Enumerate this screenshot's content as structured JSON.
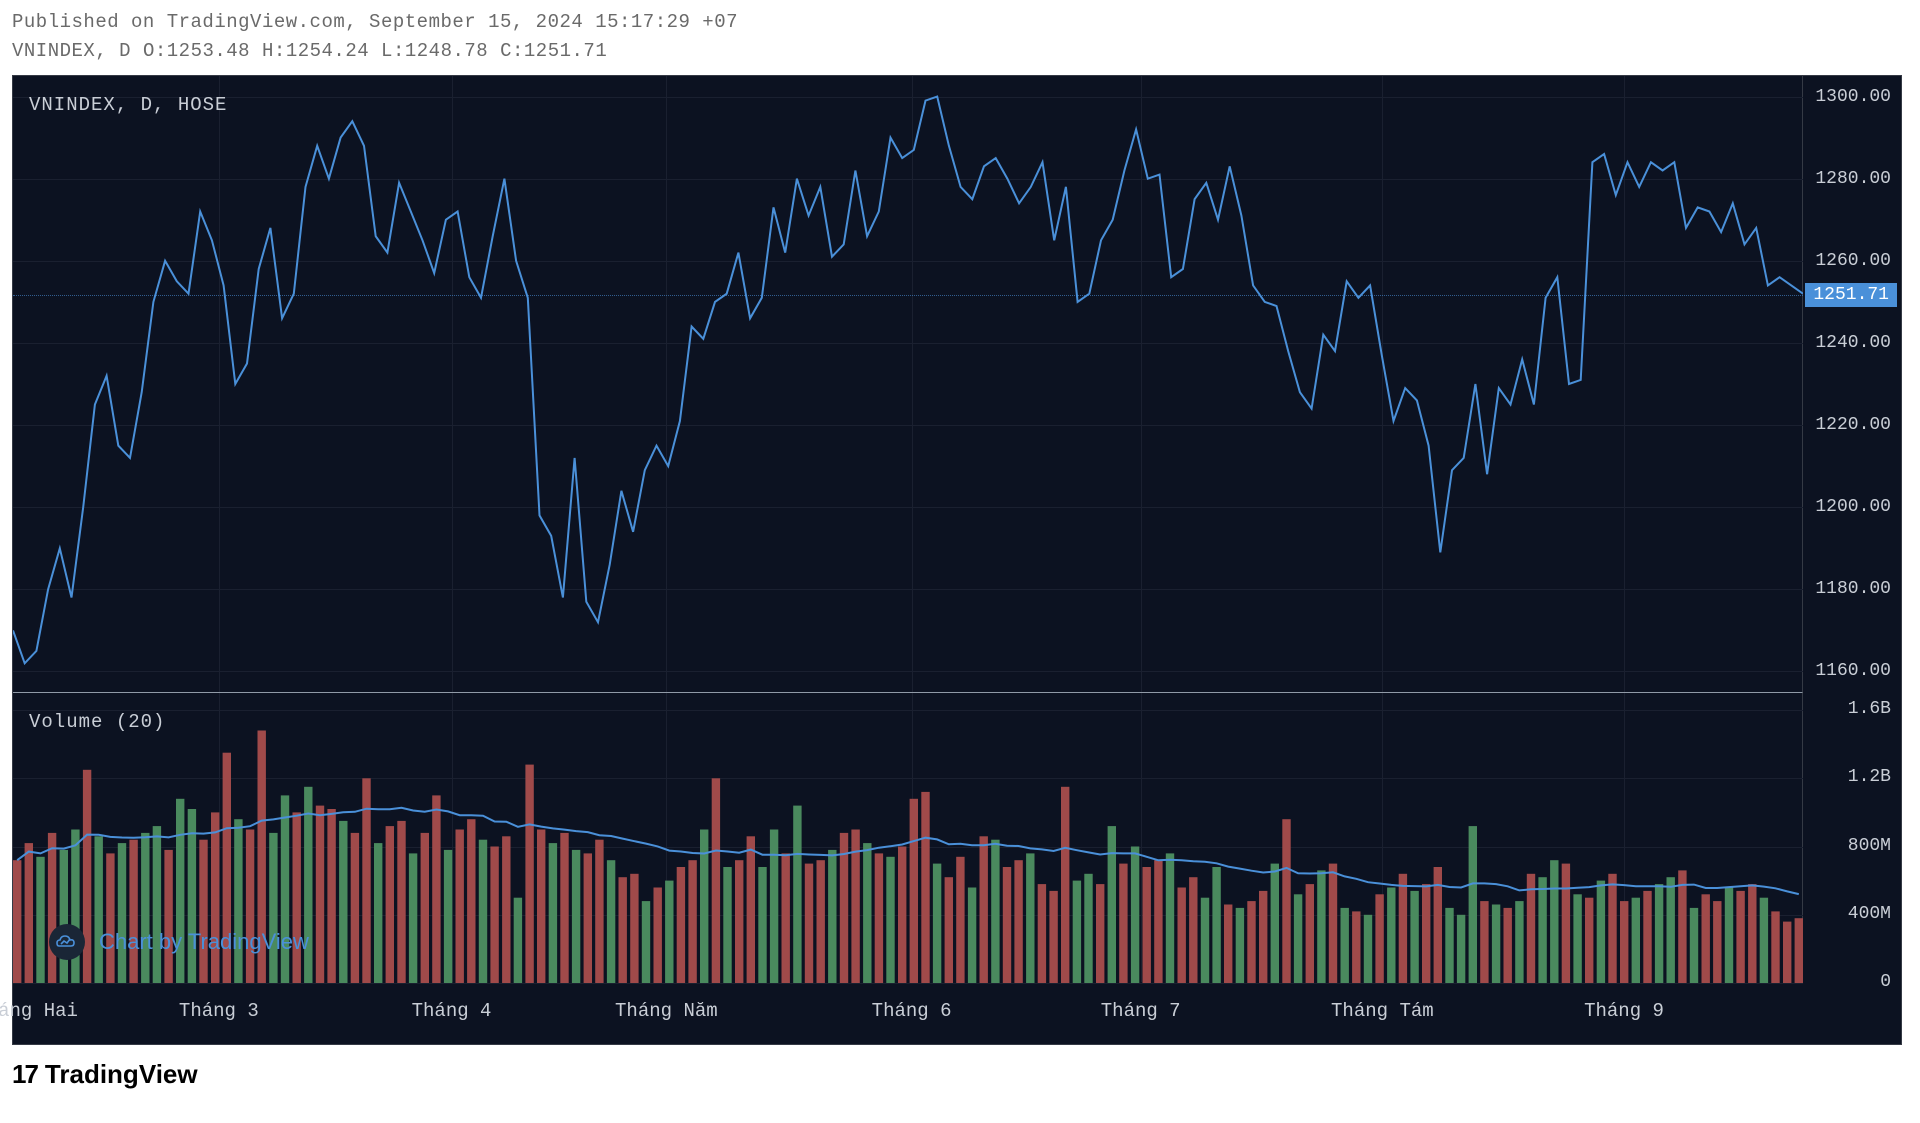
{
  "header": {
    "line1": "Published on TradingView.com, September 15, 2024 15:17:29 +07",
    "line2_symbol": "VNINDEX",
    "line2_tf": "D",
    "ohlc": {
      "O": "1253.48",
      "H": "1254.24",
      "L": "1248.78",
      "C": "1251.71"
    }
  },
  "price_chart": {
    "panel_label": "VNINDEX, D, HOSE",
    "label_color": "#c9ced6",
    "line_color": "#4a90d9",
    "line_width": 2,
    "background": "#0c1221",
    "grid_color": "#1a2030",
    "ylim": [
      1155,
      1305
    ],
    "yticks": [
      1160,
      1180,
      1200,
      1220,
      1240,
      1260,
      1280,
      1300
    ],
    "last_price": 1251.71,
    "last_price_color": "#4a90d9",
    "data": [
      1170,
      1162,
      1165,
      1180,
      1190,
      1178,
      1200,
      1225,
      1232,
      1215,
      1212,
      1228,
      1250,
      1260,
      1255,
      1252,
      1272,
      1265,
      1254,
      1230,
      1235,
      1258,
      1268,
      1246,
      1252,
      1278,
      1288,
      1280,
      1290,
      1294,
      1288,
      1266,
      1262,
      1279,
      1272,
      1265,
      1257,
      1270,
      1272,
      1256,
      1251,
      1266,
      1280,
      1260,
      1251,
      1198,
      1193,
      1178,
      1212,
      1177,
      1172,
      1186,
      1204,
      1194,
      1209,
      1215,
      1210,
      1221,
      1244,
      1241,
      1250,
      1252,
      1262,
      1246,
      1251,
      1273,
      1262,
      1280,
      1271,
      1278,
      1261,
      1264,
      1282,
      1266,
      1272,
      1290,
      1285,
      1287,
      1299,
      1300,
      1288,
      1278,
      1275,
      1283,
      1285,
      1280,
      1274,
      1278,
      1284,
      1265,
      1278,
      1250,
      1252,
      1265,
      1270,
      1282,
      1292,
      1280,
      1281,
      1256,
      1258,
      1275,
      1279,
      1270,
      1283,
      1271,
      1254,
      1250,
      1249,
      1238,
      1228,
      1224,
      1242,
      1238,
      1255,
      1251,
      1254,
      1237,
      1221,
      1229,
      1226,
      1215,
      1189,
      1209,
      1212,
      1230,
      1208,
      1229,
      1225,
      1236,
      1225,
      1251,
      1256,
      1230,
      1231,
      1284,
      1286,
      1276,
      1284,
      1278,
      1284,
      1282,
      1284,
      1268,
      1273,
      1272,
      1267,
      1274,
      1264,
      1268,
      1254,
      1256,
      1254,
      1252
    ]
  },
  "volume_chart": {
    "label": "Volume (20)",
    "label_color": "#c9ced6",
    "ma_color": "#4a90d9",
    "ma_width": 2,
    "up_color": "#4a8a5e",
    "down_color": "#a04a4a",
    "ylim": [
      0,
      1700
    ],
    "yticks": [
      {
        "v": 0,
        "label": "0"
      },
      {
        "v": 400,
        "label": "400M"
      },
      {
        "v": 800,
        "label": "800M"
      },
      {
        "v": 1200,
        "label": "1.2B"
      },
      {
        "v": 1600,
        "label": "1.6B"
      }
    ],
    "bars": [
      {
        "v": 720,
        "d": -1
      },
      {
        "v": 820,
        "d": -1
      },
      {
        "v": 740,
        "d": 1
      },
      {
        "v": 880,
        "d": -1
      },
      {
        "v": 780,
        "d": 1
      },
      {
        "v": 900,
        "d": 1
      },
      {
        "v": 1250,
        "d": -1
      },
      {
        "v": 860,
        "d": 1
      },
      {
        "v": 760,
        "d": -1
      },
      {
        "v": 820,
        "d": 1
      },
      {
        "v": 840,
        "d": -1
      },
      {
        "v": 880,
        "d": 1
      },
      {
        "v": 920,
        "d": 1
      },
      {
        "v": 780,
        "d": -1
      },
      {
        "v": 1080,
        "d": 1
      },
      {
        "v": 1020,
        "d": 1
      },
      {
        "v": 840,
        "d": -1
      },
      {
        "v": 1000,
        "d": -1
      },
      {
        "v": 1350,
        "d": -1
      },
      {
        "v": 960,
        "d": 1
      },
      {
        "v": 900,
        "d": -1
      },
      {
        "v": 1480,
        "d": -1
      },
      {
        "v": 880,
        "d": 1
      },
      {
        "v": 1100,
        "d": 1
      },
      {
        "v": 1000,
        "d": -1
      },
      {
        "v": 1150,
        "d": 1
      },
      {
        "v": 1040,
        "d": -1
      },
      {
        "v": 1020,
        "d": -1
      },
      {
        "v": 950,
        "d": 1
      },
      {
        "v": 880,
        "d": -1
      },
      {
        "v": 1200,
        "d": -1
      },
      {
        "v": 820,
        "d": 1
      },
      {
        "v": 920,
        "d": -1
      },
      {
        "v": 950,
        "d": -1
      },
      {
        "v": 760,
        "d": 1
      },
      {
        "v": 880,
        "d": -1
      },
      {
        "v": 1100,
        "d": -1
      },
      {
        "v": 780,
        "d": 1
      },
      {
        "v": 900,
        "d": -1
      },
      {
        "v": 960,
        "d": -1
      },
      {
        "v": 840,
        "d": 1
      },
      {
        "v": 800,
        "d": -1
      },
      {
        "v": 860,
        "d": -1
      },
      {
        "v": 500,
        "d": 1
      },
      {
        "v": 1280,
        "d": -1
      },
      {
        "v": 900,
        "d": -1
      },
      {
        "v": 820,
        "d": 1
      },
      {
        "v": 880,
        "d": -1
      },
      {
        "v": 780,
        "d": 1
      },
      {
        "v": 760,
        "d": -1
      },
      {
        "v": 840,
        "d": -1
      },
      {
        "v": 720,
        "d": 1
      },
      {
        "v": 620,
        "d": -1
      },
      {
        "v": 640,
        "d": -1
      },
      {
        "v": 480,
        "d": 1
      },
      {
        "v": 560,
        "d": -1
      },
      {
        "v": 600,
        "d": 1
      },
      {
        "v": 680,
        "d": -1
      },
      {
        "v": 720,
        "d": -1
      },
      {
        "v": 900,
        "d": 1
      },
      {
        "v": 1200,
        "d": -1
      },
      {
        "v": 680,
        "d": 1
      },
      {
        "v": 720,
        "d": -1
      },
      {
        "v": 860,
        "d": -1
      },
      {
        "v": 680,
        "d": 1
      },
      {
        "v": 900,
        "d": 1
      },
      {
        "v": 760,
        "d": -1
      },
      {
        "v": 1040,
        "d": 1
      },
      {
        "v": 700,
        "d": -1
      },
      {
        "v": 720,
        "d": -1
      },
      {
        "v": 780,
        "d": 1
      },
      {
        "v": 880,
        "d": -1
      },
      {
        "v": 900,
        "d": -1
      },
      {
        "v": 820,
        "d": 1
      },
      {
        "v": 760,
        "d": -1
      },
      {
        "v": 740,
        "d": 1
      },
      {
        "v": 800,
        "d": -1
      },
      {
        "v": 1080,
        "d": -1
      },
      {
        "v": 1120,
        "d": -1
      },
      {
        "v": 700,
        "d": 1
      },
      {
        "v": 620,
        "d": -1
      },
      {
        "v": 740,
        "d": -1
      },
      {
        "v": 560,
        "d": 1
      },
      {
        "v": 860,
        "d": -1
      },
      {
        "v": 840,
        "d": 1
      },
      {
        "v": 680,
        "d": -1
      },
      {
        "v": 720,
        "d": -1
      },
      {
        "v": 760,
        "d": 1
      },
      {
        "v": 580,
        "d": -1
      },
      {
        "v": 540,
        "d": -1
      },
      {
        "v": 1150,
        "d": -1
      },
      {
        "v": 600,
        "d": 1
      },
      {
        "v": 640,
        "d": 1
      },
      {
        "v": 580,
        "d": -1
      },
      {
        "v": 920,
        "d": 1
      },
      {
        "v": 700,
        "d": -1
      },
      {
        "v": 800,
        "d": 1
      },
      {
        "v": 680,
        "d": -1
      },
      {
        "v": 720,
        "d": -1
      },
      {
        "v": 760,
        "d": 1
      },
      {
        "v": 560,
        "d": -1
      },
      {
        "v": 620,
        "d": -1
      },
      {
        "v": 500,
        "d": 1
      },
      {
        "v": 680,
        "d": 1
      },
      {
        "v": 460,
        "d": -1
      },
      {
        "v": 440,
        "d": 1
      },
      {
        "v": 480,
        "d": -1
      },
      {
        "v": 540,
        "d": -1
      },
      {
        "v": 700,
        "d": 1
      },
      {
        "v": 960,
        "d": -1
      },
      {
        "v": 520,
        "d": 1
      },
      {
        "v": 580,
        "d": -1
      },
      {
        "v": 660,
        "d": 1
      },
      {
        "v": 700,
        "d": -1
      },
      {
        "v": 440,
        "d": 1
      },
      {
        "v": 420,
        "d": -1
      },
      {
        "v": 400,
        "d": 1
      },
      {
        "v": 520,
        "d": -1
      },
      {
        "v": 560,
        "d": 1
      },
      {
        "v": 640,
        "d": -1
      },
      {
        "v": 540,
        "d": 1
      },
      {
        "v": 580,
        "d": -1
      },
      {
        "v": 680,
        "d": -1
      },
      {
        "v": 440,
        "d": 1
      },
      {
        "v": 400,
        "d": 1
      },
      {
        "v": 920,
        "d": 1
      },
      {
        "v": 480,
        "d": -1
      },
      {
        "v": 460,
        "d": 1
      },
      {
        "v": 440,
        "d": -1
      },
      {
        "v": 480,
        "d": 1
      },
      {
        "v": 640,
        "d": -1
      },
      {
        "v": 620,
        "d": 1
      },
      {
        "v": 720,
        "d": 1
      },
      {
        "v": 700,
        "d": -1
      },
      {
        "v": 520,
        "d": 1
      },
      {
        "v": 500,
        "d": -1
      },
      {
        "v": 600,
        "d": 1
      },
      {
        "v": 640,
        "d": -1
      },
      {
        "v": 480,
        "d": -1
      },
      {
        "v": 500,
        "d": 1
      },
      {
        "v": 540,
        "d": -1
      },
      {
        "v": 580,
        "d": 1
      },
      {
        "v": 620,
        "d": 1
      },
      {
        "v": 660,
        "d": -1
      },
      {
        "v": 440,
        "d": 1
      },
      {
        "v": 520,
        "d": -1
      },
      {
        "v": 480,
        "d": -1
      },
      {
        "v": 560,
        "d": 1
      },
      {
        "v": 540,
        "d": -1
      },
      {
        "v": 580,
        "d": -1
      },
      {
        "v": 500,
        "d": 1
      },
      {
        "v": 420,
        "d": -1
      },
      {
        "v": 360,
        "d": -1
      },
      {
        "v": 380,
        "d": -1
      }
    ]
  },
  "x_axis": {
    "labels": [
      {
        "pos": 0.014,
        "text": "áng Hai"
      },
      {
        "pos": 0.115,
        "text": "Tháng 3"
      },
      {
        "pos": 0.245,
        "text": "Tháng 4"
      },
      {
        "pos": 0.365,
        "text": "Tháng Năm"
      },
      {
        "pos": 0.502,
        "text": "Tháng 6"
      },
      {
        "pos": 0.63,
        "text": "Tháng 7"
      },
      {
        "pos": 0.765,
        "text": "Tháng Tám"
      },
      {
        "pos": 0.9,
        "text": "Tháng 9"
      }
    ],
    "grid_positions": [
      0.115,
      0.245,
      0.365,
      0.502,
      0.63,
      0.765,
      0.9
    ]
  },
  "watermark": {
    "text": "Chart by TradingView",
    "icon_color": "#4a90d9"
  },
  "footer": {
    "logo_text": "TradingView"
  }
}
